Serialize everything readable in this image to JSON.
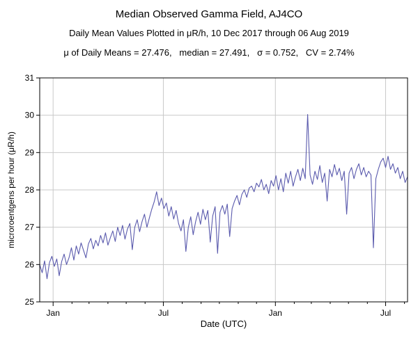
{
  "chart_data": {
    "type": "line",
    "title": "Median Observed Gamma Field, AJ4CO",
    "subtitle": "Daily Mean Values Plotted in μR/h, 10 Dec 2017 through 06 Aug 2019",
    "stats": {
      "mean": 27.476,
      "median": 27.491,
      "sigma": 0.752,
      "cv_percent": 2.74,
      "label": "μ of Daily Means = 27.476,   median = 27.491,   σ = 0.752,   CV = 2.74%"
    },
    "date_range": {
      "start": "10 Dec 2017",
      "end": "06 Aug 2019"
    },
    "xlabel": "Date (UTC)",
    "ylabel": "microroentgens per hour (μR/h)",
    "ylim": [
      25,
      31
    ],
    "yticks": [
      25,
      26,
      27,
      28,
      29,
      30,
      31
    ],
    "xlim_days": [
      0,
      604
    ],
    "xticks": [
      {
        "day": 22,
        "label": "Jan"
      },
      {
        "day": 203,
        "label": "Jul"
      },
      {
        "day": 387,
        "label": "Jan"
      },
      {
        "day": 568,
        "label": "Jul"
      }
    ],
    "xticks_minor_days": [
      53,
      81,
      112,
      142,
      173,
      234,
      265,
      295,
      326,
      356,
      418,
      446,
      477,
      507,
      538,
      599
    ],
    "grid": true,
    "grid_color": "#c9c9c9",
    "line_color": "#5a5aad",
    "frame_color": "#000000",
    "series": [
      {
        "name": "daily_mean_gamma",
        "start_day": 0,
        "day_step": 4,
        "values": [
          26.0,
          25.78,
          26.1,
          25.62,
          26.05,
          26.22,
          25.95,
          26.15,
          25.7,
          26.08,
          26.28,
          26.0,
          26.18,
          26.45,
          26.12,
          26.5,
          26.28,
          26.58,
          26.38,
          26.18,
          26.55,
          26.7,
          26.42,
          26.65,
          26.5,
          26.78,
          26.58,
          26.85,
          26.52,
          26.72,
          26.9,
          26.62,
          27.0,
          26.78,
          27.05,
          26.68,
          26.95,
          27.1,
          26.4,
          27.0,
          27.2,
          26.88,
          27.15,
          27.35,
          27.0,
          27.25,
          27.48,
          27.68,
          27.95,
          27.58,
          27.78,
          27.5,
          27.65,
          27.3,
          27.55,
          27.22,
          27.45,
          27.1,
          26.9,
          27.2,
          26.35,
          27.0,
          27.28,
          26.8,
          27.15,
          27.4,
          27.08,
          27.48,
          27.2,
          27.45,
          26.6,
          27.3,
          27.55,
          26.3,
          27.4,
          27.58,
          27.35,
          27.62,
          26.75,
          27.5,
          27.7,
          27.85,
          27.6,
          27.88,
          28.0,
          27.8,
          28.05,
          28.1,
          27.95,
          28.18,
          28.08,
          28.28,
          28.0,
          28.15,
          27.9,
          28.25,
          28.1,
          28.38,
          28.0,
          28.3,
          27.95,
          28.45,
          28.18,
          28.5,
          28.1,
          28.35,
          28.55,
          28.25,
          28.58,
          28.3,
          30.02,
          28.4,
          28.15,
          28.5,
          28.28,
          28.65,
          28.2,
          28.45,
          27.7,
          28.55,
          28.35,
          28.68,
          28.4,
          28.58,
          28.25,
          28.5,
          27.35,
          28.45,
          28.6,
          28.3,
          28.55,
          28.7,
          28.4,
          28.6,
          28.35,
          28.5,
          28.4,
          26.45,
          28.3,
          28.55,
          28.75,
          28.85,
          28.6,
          28.9,
          28.55,
          28.7,
          28.45,
          28.6,
          28.3,
          28.5,
          28.2,
          28.35
        ]
      }
    ]
  }
}
